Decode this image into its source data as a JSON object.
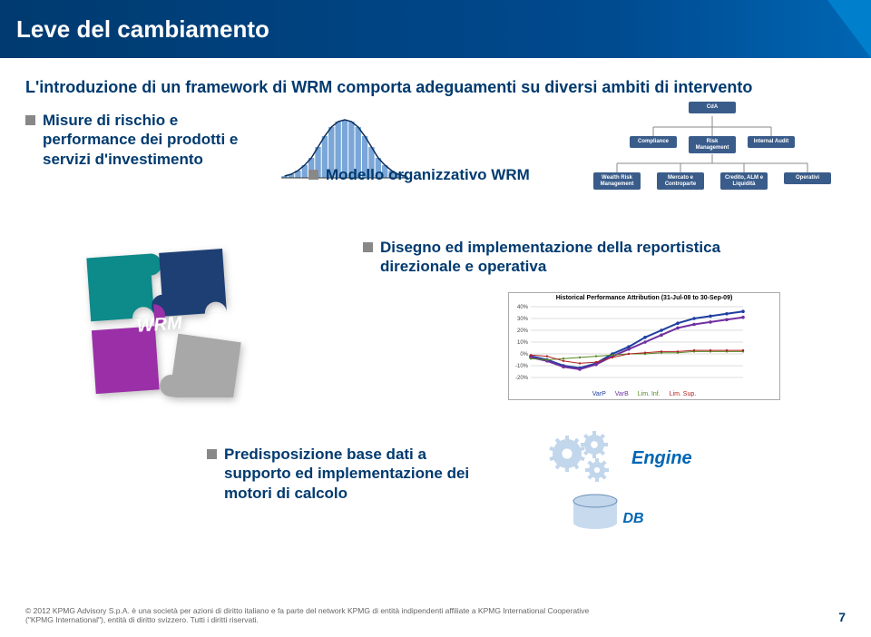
{
  "header": {
    "title": "Leve del cambiamento"
  },
  "intro": "L'introduzione di un framework di WRM comporta adeguamenti su diversi ambiti di intervento",
  "blocks": {
    "b1": "Misure di rischio e performance dei prodotti e servizi d'investimento",
    "b2": "Modello organizzativo WRM",
    "b3": "Disegno ed implementazione della reportistica direzionale e operativa",
    "b4": "Predisposizione base dati a supporto ed implementazione dei motori di calcolo"
  },
  "orgchart": {
    "top": "CdA",
    "row1": [
      "Compliance",
      "Risk Management",
      "Internal Audit"
    ],
    "row2": [
      "Wealth Risk Management",
      "Mercato e Controparte",
      "Credito, ALM e Liquidità",
      "Operativi"
    ],
    "box_color": "#3a5c8a"
  },
  "histogram": {
    "bars": [
      2,
      4,
      8,
      14,
      22,
      34,
      46,
      56,
      62,
      64,
      62,
      56,
      46,
      34,
      22,
      14,
      8,
      4,
      2
    ],
    "bar_color": "#7aa7d8",
    "curve_color": "#0b2e5c"
  },
  "puzzle": {
    "colors": [
      "#0d8a8a",
      "#1e3f73",
      "#9a2fa8",
      "#a8a8a8"
    ],
    "center_text": "WRM",
    "center_color": "#ffffff"
  },
  "linechart": {
    "title": "Historical Performance Attribution (31-Jul-08 to 30-Sep-09)",
    "ylim": [
      -20,
      40
    ],
    "yticks": [
      -20,
      -10,
      0,
      10,
      20,
      30,
      40
    ],
    "series": [
      {
        "name": "VarP",
        "color": "#1e3fa0",
        "width": 2,
        "y": [
          -2,
          -5,
          -10,
          -12,
          -8,
          0,
          6,
          14,
          20,
          26,
          30,
          32,
          34,
          36
        ]
      },
      {
        "name": "VarB",
        "color": "#7030a0",
        "width": 2,
        "y": [
          -3,
          -6,
          -11,
          -13,
          -9,
          -2,
          4,
          10,
          16,
          22,
          25,
          27,
          29,
          31
        ]
      },
      {
        "name": "Lim Inf",
        "color": "#558822",
        "width": 1,
        "y": [
          -4,
          -5,
          -4,
          -3,
          -2,
          -1,
          0,
          0,
          1,
          1,
          2,
          2,
          2,
          2
        ]
      },
      {
        "name": "Lim Sup",
        "color": "#b02020",
        "width": 1,
        "y": [
          -1,
          -2,
          -6,
          -8,
          -7,
          -3,
          0,
          1,
          2,
          2,
          3,
          3,
          3,
          3
        ]
      }
    ],
    "legend": [
      "VarP",
      "VarB",
      "Lim. Inf.",
      "Lim. Sup."
    ],
    "background_color": "#ffffff",
    "grid_color": "#dddddd"
  },
  "engine": {
    "label": "Engine",
    "db_label": "DB",
    "gear_color": "#c2d6ec",
    "db_color": "#c2d6ec"
  },
  "footer": {
    "copyright": "© 2012 KPMG Advisory S.p.A. è una società per azioni di diritto italiano e fa parte del network KPMG di entità indipendenti affiliate a KPMG International Cooperative (\"KPMG International\"), entità di diritto svizzero. Tutti i diritti riservati.",
    "page": "7"
  }
}
